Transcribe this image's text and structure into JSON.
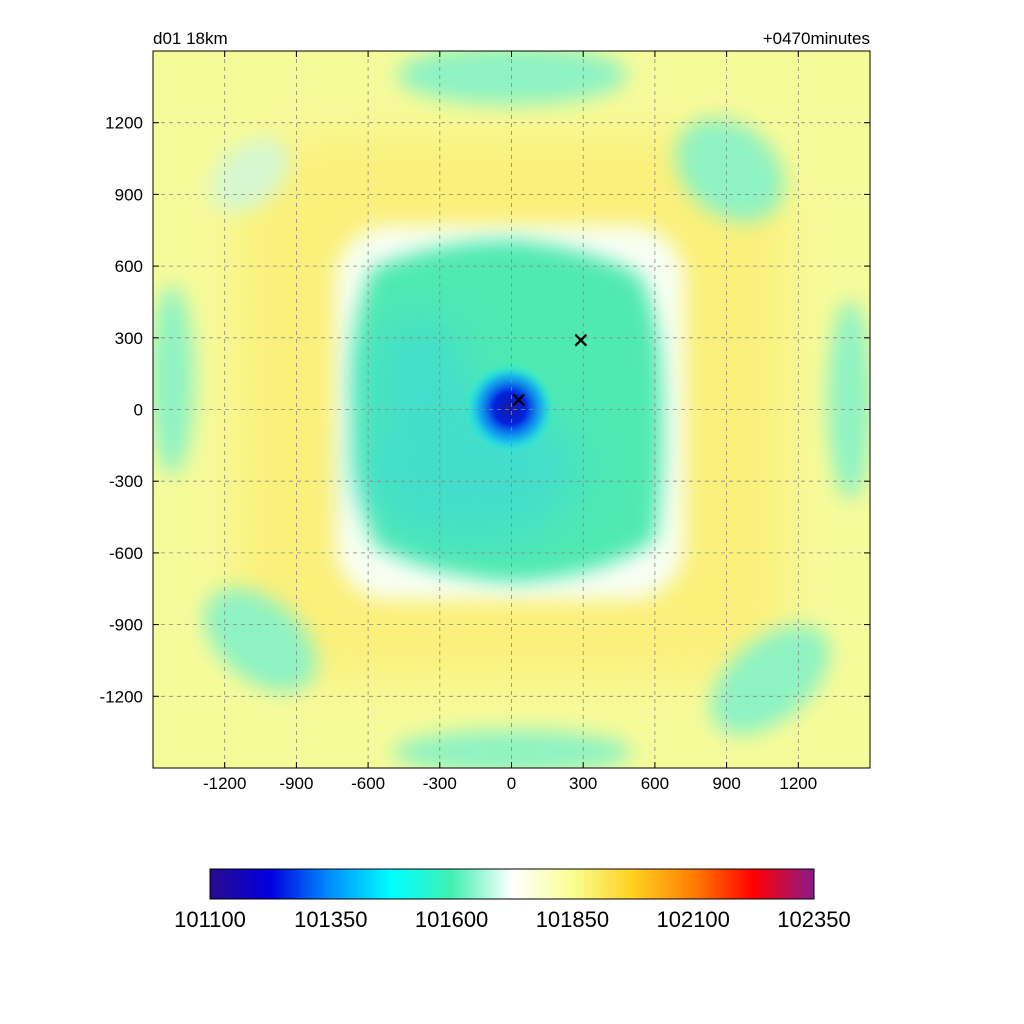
{
  "chart_data": {
    "type": "heatmap",
    "title_left": "d01 18km",
    "title_right": "+0470minutes",
    "xlabel": "",
    "ylabel": "",
    "xlim": [
      -1500,
      1500
    ],
    "ylim": [
      -1500,
      1500
    ],
    "x_ticks": [
      -1200,
      -900,
      -600,
      -300,
      0,
      300,
      600,
      900,
      1200
    ],
    "y_ticks": [
      1200,
      900,
      600,
      300,
      0,
      -300,
      -600,
      -900,
      -1200
    ],
    "x_tick_labels": [
      "-1200",
      "-900",
      "-600",
      "-300",
      "0",
      "300",
      "600",
      "900",
      "1200"
    ],
    "y_tick_labels": [
      "1200",
      "900",
      "600",
      "300",
      "0",
      "-300",
      "-600",
      "-900",
      "-1200"
    ],
    "grid": true,
    "grid_style": "dashed",
    "colorbar": {
      "range": [
        101100,
        102350
      ],
      "tick_values": [
        101100,
        101350,
        101600,
        101850,
        102100,
        102350
      ],
      "tick_labels": [
        "101100",
        "101350",
        "101600",
        "101850",
        "102100",
        "102350"
      ],
      "colors": [
        "#2a0a8c",
        "#0000e0",
        "#0090ff",
        "#00ffff",
        "#40f0b0",
        "#ffffff",
        "#f8ff90",
        "#ffd020",
        "#ff8000",
        "#ff0000",
        "#8a1a8a"
      ],
      "position": "bottom"
    },
    "field": {
      "background_value": 101790,
      "center_value": 101130,
      "inner_core_value": 101650,
      "ring_value": 101830,
      "corner_lobe_value": 101720
    },
    "markers": [
      {
        "symbol": "x",
        "x": 30,
        "y": 40
      },
      {
        "symbol": "x",
        "x": 290,
        "y": 290
      }
    ],
    "color_hint": {
      "marker": "#000000"
    }
  }
}
